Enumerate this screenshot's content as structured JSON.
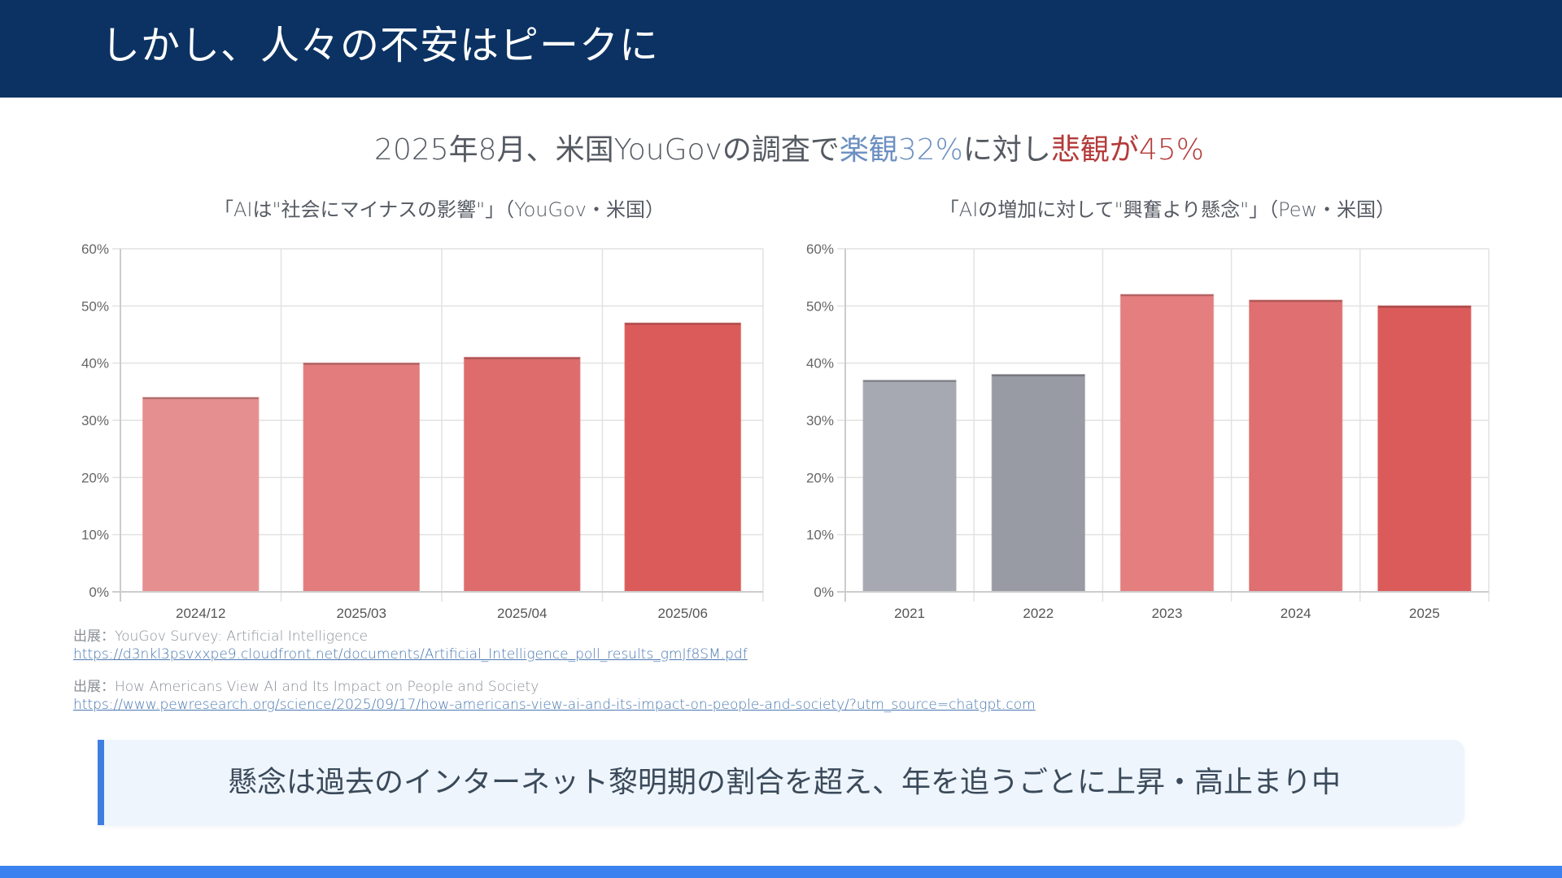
{
  "header": {
    "title": "しかし、人々の不安はピークに"
  },
  "subtitle": {
    "part1": "2025年8月、米国YouGovの調査で",
    "optimism": "楽観32%",
    "part2": "に対し",
    "pessimism": "悲観が45%",
    "optimism_color": "#6b8fc0",
    "pessimism_color": "#b53a3a"
  },
  "chart_data": [
    {
      "type": "bar",
      "title": "「AIは\"社会にマイナスの影響\"」（YouGov・米国）",
      "categories": [
        "2024/12",
        "2025/03",
        "2025/04",
        "2025/06"
      ],
      "values": [
        34,
        40,
        41,
        47
      ],
      "colors": [
        "#e68f90",
        "#e27c7d",
        "#de6c6d",
        "#db5b5b"
      ],
      "xlabel": "",
      "ylabel": "",
      "ylim": [
        0,
        60
      ],
      "yticks": [
        "0%",
        "10%",
        "20%",
        "30%",
        "40%",
        "50%",
        "60%"
      ],
      "grid": true,
      "legend": "none"
    },
    {
      "type": "bar",
      "title": "「AIの増加に対して\"興奮より懸念\"」（Pew・米国）",
      "categories": [
        "2021",
        "2022",
        "2023",
        "2024",
        "2025"
      ],
      "values": [
        37,
        38,
        52,
        51,
        50
      ],
      "colors": [
        "#a7a9b2",
        "#989ba4",
        "#e47e7f",
        "#df6f70",
        "#db5b5b"
      ],
      "xlabel": "",
      "ylabel": "",
      "ylim": [
        0,
        60
      ],
      "yticks": [
        "0%",
        "10%",
        "20%",
        "30%",
        "40%",
        "50%",
        "60%"
      ],
      "grid": true,
      "legend": "none"
    }
  ],
  "sources": [
    {
      "label": "出展：YouGov Survey: Artificial Intelligence",
      "url": "https://d3nkl3psvxxpe9.cloudfront.net/documents/Artificial_Intelligence_poll_results_gmJf8SM.pdf"
    },
    {
      "label": "出展：How Americans View AI and Its Impact on People and Society",
      "url": "https://www.pewresearch.org/science/2025/09/17/how-americans-view-ai-and-its-impact-on-people-and-society/?utm_source=chatgpt.com"
    }
  ],
  "callout": {
    "text": "懸念は過去のインターネット黎明期の割合を超え、年を追うごとに上昇・高止まり中"
  }
}
